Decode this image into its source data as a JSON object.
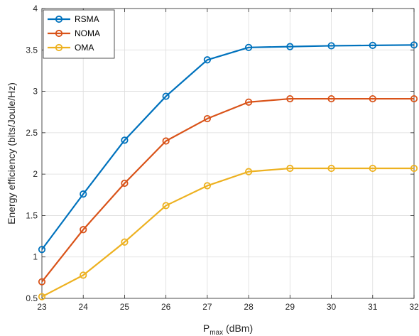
{
  "chart_data": {
    "type": "line",
    "title": "",
    "xlabel": {
      "main": "P",
      "sub": "max",
      "unit": " (dBm)"
    },
    "ylabel": "Energy efficiency (bits/Joule/Hz)",
    "x": [
      23,
      24,
      25,
      26,
      27,
      28,
      29,
      30,
      31,
      32
    ],
    "xlim": [
      23,
      32
    ],
    "ylim": [
      0.5,
      4
    ],
    "yticks": [
      "0.5",
      "1",
      "1.5",
      "2",
      "2.5",
      "3",
      "3.5",
      "4"
    ],
    "xticks": [
      "23",
      "24",
      "25",
      "26",
      "27",
      "28",
      "29",
      "30",
      "31",
      "32"
    ],
    "grid": true,
    "legend_position": "top-left",
    "series": [
      {
        "name": "RSMA",
        "color": "#0072BD",
        "values": [
          1.09,
          1.76,
          2.41,
          2.94,
          3.38,
          3.53,
          3.54,
          3.55,
          3.555,
          3.56
        ]
      },
      {
        "name": "NOMA",
        "color": "#D95319",
        "values": [
          0.7,
          1.33,
          1.89,
          2.4,
          2.67,
          2.87,
          2.91,
          2.91,
          2.91,
          2.91
        ]
      },
      {
        "name": "OMA",
        "color": "#EDB120",
        "values": [
          0.52,
          0.78,
          1.18,
          1.62,
          1.86,
          2.03,
          2.07,
          2.07,
          2.07,
          2.07
        ]
      }
    ]
  }
}
